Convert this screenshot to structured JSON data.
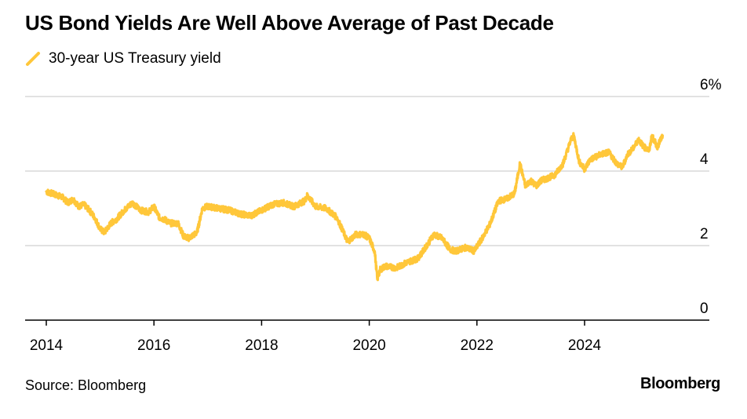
{
  "title": "US Bond Yields Are Well Above Average of Past Decade",
  "legend": {
    "label": "30-year US Treasury yield"
  },
  "source": "Source: Bloomberg",
  "brand": "Bloomberg",
  "colors": {
    "series": "#FFC73A",
    "grid": "#D9D9D9",
    "axis": "#000000"
  },
  "chart_data": {
    "type": "line",
    "title": "US Bond Yields Are Well Above Average of Past Decade",
    "xlabel": "",
    "ylabel": "",
    "xlim": [
      2013.6,
      2026.2
    ],
    "ylim": [
      0,
      6
    ],
    "y_axis_position": "right",
    "y_ticks": [
      0,
      2,
      4,
      6
    ],
    "y_tick_labels": [
      "0",
      "2",
      "4",
      "6%"
    ],
    "x_ticks": [
      2014,
      2016,
      2018,
      2020,
      2022,
      2024
    ],
    "x_tick_labels": [
      "2014",
      "2016",
      "2018",
      "2020",
      "2022",
      "2024"
    ],
    "legend_position": "top-left",
    "series": [
      {
        "name": "30-year US Treasury yield",
        "x": [
          2014.0,
          2014.1,
          2014.2,
          2014.3,
          2014.4,
          2014.5,
          2014.6,
          2014.7,
          2014.8,
          2014.9,
          2015.0,
          2015.08,
          2015.2,
          2015.3,
          2015.45,
          2015.6,
          2015.75,
          2015.9,
          2016.0,
          2016.1,
          2016.2,
          2016.3,
          2016.45,
          2016.55,
          2016.65,
          2016.8,
          2016.9,
          2017.0,
          2017.2,
          2017.4,
          2017.6,
          2017.8,
          2018.0,
          2018.2,
          2018.4,
          2018.6,
          2018.8,
          2018.85,
          2019.0,
          2019.2,
          2019.4,
          2019.6,
          2019.75,
          2019.9,
          2020.0,
          2020.1,
          2020.15,
          2020.2,
          2020.3,
          2020.5,
          2020.7,
          2020.9,
          2021.0,
          2021.2,
          2021.35,
          2021.5,
          2021.6,
          2021.8,
          2021.95,
          2022.1,
          2022.25,
          2022.4,
          2022.55,
          2022.7,
          2022.8,
          2022.9,
          2023.0,
          2023.1,
          2023.2,
          2023.3,
          2023.45,
          2023.6,
          2023.75,
          2023.8,
          2023.9,
          2024.0,
          2024.1,
          2024.3,
          2024.45,
          2024.6,
          2024.7,
          2024.8,
          2024.9,
          2025.0,
          2025.1,
          2025.2,
          2025.25,
          2025.35,
          2025.45
        ],
        "values": [
          3.45,
          3.4,
          3.35,
          3.3,
          3.15,
          3.25,
          3.05,
          3.1,
          2.95,
          2.75,
          2.45,
          2.35,
          2.6,
          2.7,
          2.95,
          3.15,
          2.95,
          2.9,
          3.05,
          2.75,
          2.7,
          2.6,
          2.6,
          2.25,
          2.2,
          2.35,
          3.0,
          3.05,
          3.0,
          2.95,
          2.85,
          2.8,
          2.95,
          3.1,
          3.15,
          3.05,
          3.2,
          3.35,
          3.05,
          3.0,
          2.75,
          2.1,
          2.3,
          2.3,
          2.2,
          1.85,
          1.1,
          1.35,
          1.45,
          1.4,
          1.55,
          1.65,
          1.85,
          2.3,
          2.2,
          1.9,
          1.85,
          1.95,
          1.85,
          2.2,
          2.6,
          3.2,
          3.25,
          3.4,
          4.2,
          3.6,
          3.75,
          3.6,
          3.75,
          3.8,
          3.9,
          4.2,
          4.85,
          4.95,
          4.25,
          4.05,
          4.3,
          4.45,
          4.5,
          4.2,
          4.1,
          4.45,
          4.6,
          4.85,
          4.65,
          4.55,
          4.95,
          4.65,
          4.95
        ]
      }
    ]
  }
}
